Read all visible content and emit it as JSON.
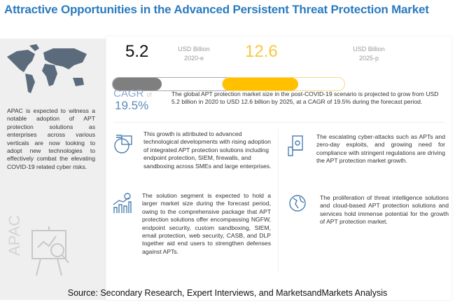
{
  "title": "Attractive Opportunities in the Advanced Persistent Threat Protection Market",
  "left_panel": {
    "text": "APAC is expected to witness a notable adoption of APT protection solutions as enterprises across various verticals are now looking to adopt new technologies to effectively combat the elevating COVID-19 related cyber risks.",
    "region_label": "APAC",
    "icons": [
      "world-map-icon",
      "analytics-presentation-icon"
    ]
  },
  "market": {
    "start": {
      "value": "5.2",
      "unit": "USD Billion",
      "year": "2020-e",
      "fill_percent": 40,
      "color": "#7f7f7f"
    },
    "end": {
      "value": "12.6",
      "unit": "USD Billion",
      "year": "2025-p",
      "fill_percent": 62,
      "color": "#ffc000"
    },
    "cagr_label": "CAGR",
    "cagr_of": "of",
    "cagr_value": "19.5%",
    "description": "The global APT protection market size in the post-COVID-19 scenario is projected to grow from USD 5.2 billion in 2020 to USD 12.6 billion by 2025, at a CAGR of 19.5% during the forecast period."
  },
  "cards": [
    {
      "icon": "analytics-magnifier-icon",
      "text": "This growth is attributed to advanced technological developments with rising adoption of integrated APT protection solutions including endpoint protection, SIEM, firewalls, and sandboxing across SMEs and large enterprises."
    },
    {
      "icon": "hand-money-icon",
      "text": "The escalating cyber-attacks such as APTs and zero-day exploits, and growing need for compliance with stringent regulations are driving the APT protection market growth."
    },
    {
      "icon": "growth-chart-dollar-icon",
      "text": "The solution segment is expected to hold a larger market size during the forecast period, owing to the comprehensive package that APT protection solutions offer encompassing NGFW, endpoint security, custom sandboxing, SIEM, email protection, web security, CASB, and DLP together aid end users to strengthen defenses against APTs."
    },
    {
      "icon": "globe-icon",
      "text": "The proliferation of threat intelligence solutions and cloud-based APT protection solutions and services hold immense potential for the growth of APT protection market."
    }
  ],
  "source": "Source: Secondary Research, Expert Interviews, and MarketsandMarkets Analysis",
  "accent": "#2a7bbf"
}
